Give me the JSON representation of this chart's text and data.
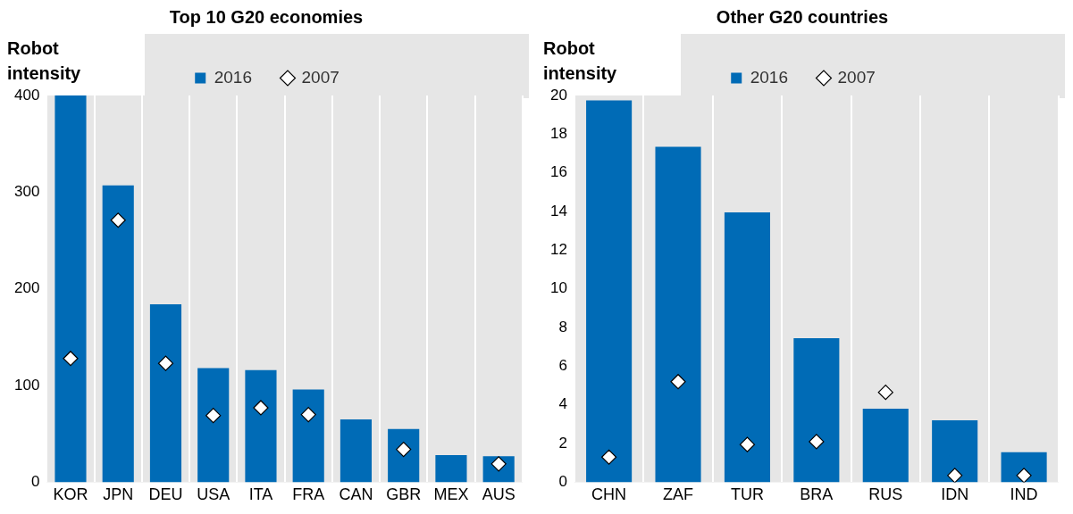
{
  "chart_data": [
    {
      "type": "bar",
      "title": "Top 10 G20 economies",
      "ylabel": "Robot intensity",
      "categories": [
        "KOR",
        "JPN",
        "DEU",
        "USA",
        "ITA",
        "FRA",
        "CAN",
        "GBR",
        "MEX",
        "AUS"
      ],
      "series": [
        {
          "name": "2016",
          "color": "#006bb6",
          "values": [
            400,
            307,
            184,
            118,
            116,
            96,
            65,
            55,
            28,
            27
          ]
        },
        {
          "name": "2007",
          "type": "scatter",
          "marker": "diamond",
          "color": "#ffffff",
          "values": [
            128,
            271,
            123,
            69,
            77,
            70,
            null,
            34,
            null,
            19
          ]
        }
      ],
      "ylim": [
        0,
        400
      ],
      "yticks": [
        0,
        100,
        200,
        300,
        400
      ],
      "grid": "x",
      "legend": "top"
    },
    {
      "type": "bar",
      "title": "Other G20 countries",
      "ylabel": "Robot intensity",
      "categories": [
        "CHN",
        "ZAF",
        "TUR",
        "BRA",
        "RUS",
        "IDN",
        "IND"
      ],
      "series": [
        {
          "name": "2016",
          "color": "#006bb6",
          "values": [
            19.75,
            17.35,
            13.95,
            7.45,
            3.8,
            3.2,
            1.55
          ]
        },
        {
          "name": "2007",
          "type": "scatter",
          "marker": "diamond",
          "color": "#ffffff",
          "values": [
            1.3,
            5.2,
            1.95,
            2.1,
            4.65,
            0.35,
            0.35
          ]
        }
      ],
      "ylim": [
        0,
        20
      ],
      "yticks": [
        0,
        2,
        4,
        6,
        8,
        10,
        12,
        14,
        16,
        18,
        20
      ],
      "grid": "x",
      "legend": "top"
    }
  ]
}
